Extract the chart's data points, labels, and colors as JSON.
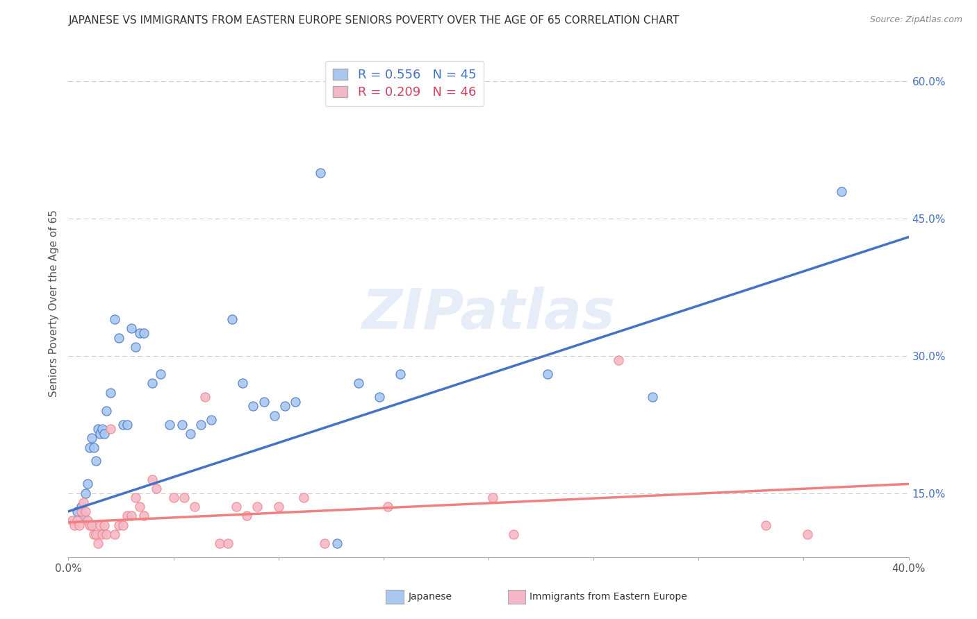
{
  "title": "JAPANESE VS IMMIGRANTS FROM EASTERN EUROPE SENIORS POVERTY OVER THE AGE OF 65 CORRELATION CHART",
  "source": "Source: ZipAtlas.com",
  "ylabel": "Seniors Poverty Over the Age of 65",
  "xmin": 0.0,
  "xmax": 0.4,
  "ymin": 0.08,
  "ymax": 0.635,
  "yticks_right": [
    0.15,
    0.3,
    0.45,
    0.6
  ],
  "ytick_labels_right": [
    "15.0%",
    "30.0%",
    "45.0%",
    "60.0%"
  ],
  "watermark": "ZIPatlas",
  "blue_R": "0.556",
  "blue_N": "45",
  "pink_R": "0.209",
  "pink_N": "46",
  "blue_color": "#A8C8F0",
  "pink_color": "#F5B8C8",
  "blue_line_color": "#4472C4",
  "pink_line_color": "#F08080",
  "blue_scatter": [
    [
      0.004,
      0.13
    ],
    [
      0.006,
      0.135
    ],
    [
      0.007,
      0.125
    ],
    [
      0.008,
      0.15
    ],
    [
      0.009,
      0.16
    ],
    [
      0.01,
      0.2
    ],
    [
      0.011,
      0.21
    ],
    [
      0.012,
      0.2
    ],
    [
      0.013,
      0.185
    ],
    [
      0.014,
      0.22
    ],
    [
      0.015,
      0.215
    ],
    [
      0.016,
      0.22
    ],
    [
      0.017,
      0.215
    ],
    [
      0.018,
      0.24
    ],
    [
      0.02,
      0.26
    ],
    [
      0.022,
      0.34
    ],
    [
      0.024,
      0.32
    ],
    [
      0.026,
      0.225
    ],
    [
      0.028,
      0.225
    ],
    [
      0.03,
      0.33
    ],
    [
      0.032,
      0.31
    ],
    [
      0.034,
      0.325
    ],
    [
      0.036,
      0.325
    ],
    [
      0.04,
      0.27
    ],
    [
      0.044,
      0.28
    ],
    [
      0.048,
      0.225
    ],
    [
      0.054,
      0.225
    ],
    [
      0.058,
      0.215
    ],
    [
      0.063,
      0.225
    ],
    [
      0.068,
      0.23
    ],
    [
      0.078,
      0.34
    ],
    [
      0.083,
      0.27
    ],
    [
      0.088,
      0.245
    ],
    [
      0.093,
      0.25
    ],
    [
      0.098,
      0.235
    ],
    [
      0.103,
      0.245
    ],
    [
      0.108,
      0.25
    ],
    [
      0.12,
      0.5
    ],
    [
      0.128,
      0.095
    ],
    [
      0.138,
      0.27
    ],
    [
      0.148,
      0.255
    ],
    [
      0.158,
      0.28
    ],
    [
      0.228,
      0.28
    ],
    [
      0.278,
      0.255
    ],
    [
      0.368,
      0.48
    ]
  ],
  "pink_scatter": [
    [
      0.002,
      0.12
    ],
    [
      0.003,
      0.115
    ],
    [
      0.004,
      0.12
    ],
    [
      0.005,
      0.115
    ],
    [
      0.006,
      0.13
    ],
    [
      0.007,
      0.14
    ],
    [
      0.008,
      0.13
    ],
    [
      0.009,
      0.12
    ],
    [
      0.01,
      0.115
    ],
    [
      0.011,
      0.115
    ],
    [
      0.012,
      0.105
    ],
    [
      0.013,
      0.105
    ],
    [
      0.014,
      0.095
    ],
    [
      0.015,
      0.115
    ],
    [
      0.016,
      0.105
    ],
    [
      0.017,
      0.115
    ],
    [
      0.018,
      0.105
    ],
    [
      0.02,
      0.22
    ],
    [
      0.022,
      0.105
    ],
    [
      0.024,
      0.115
    ],
    [
      0.026,
      0.115
    ],
    [
      0.028,
      0.125
    ],
    [
      0.03,
      0.125
    ],
    [
      0.032,
      0.145
    ],
    [
      0.034,
      0.135
    ],
    [
      0.036,
      0.125
    ],
    [
      0.04,
      0.165
    ],
    [
      0.042,
      0.155
    ],
    [
      0.05,
      0.145
    ],
    [
      0.055,
      0.145
    ],
    [
      0.06,
      0.135
    ],
    [
      0.065,
      0.255
    ],
    [
      0.072,
      0.095
    ],
    [
      0.076,
      0.095
    ],
    [
      0.08,
      0.135
    ],
    [
      0.085,
      0.125
    ],
    [
      0.09,
      0.135
    ],
    [
      0.1,
      0.135
    ],
    [
      0.112,
      0.145
    ],
    [
      0.122,
      0.095
    ],
    [
      0.152,
      0.135
    ],
    [
      0.202,
      0.145
    ],
    [
      0.212,
      0.105
    ],
    [
      0.262,
      0.295
    ],
    [
      0.332,
      0.115
    ],
    [
      0.352,
      0.105
    ]
  ],
  "blue_line_x": [
    0.0,
    0.4
  ],
  "blue_line_y": [
    0.13,
    0.43
  ],
  "pink_line_x": [
    0.0,
    0.4
  ],
  "pink_line_y": [
    0.118,
    0.16
  ],
  "background_color": "#FFFFFF",
  "grid_color": "#CCCCCC",
  "title_fontsize": 11,
  "axis_label_fontsize": 11,
  "tick_fontsize": 11,
  "legend_fontsize": 13
}
